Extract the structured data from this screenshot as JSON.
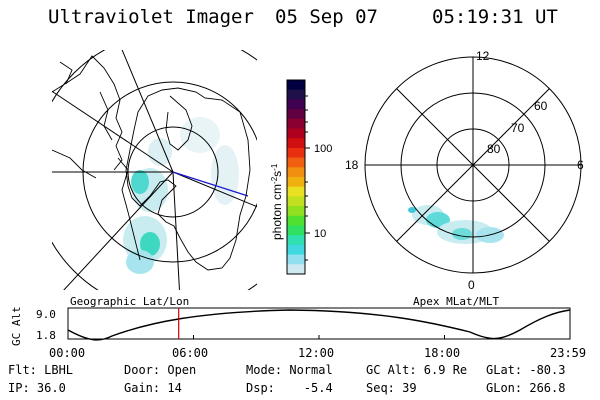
{
  "header": {
    "instrument": "Ultraviolet Imager",
    "date": "05 Sep 07",
    "time": "05:19:31 UT"
  },
  "left_panel": {
    "label": "Geographic Lat/Lon"
  },
  "right_panel": {
    "label": "Apex MLat/MLT",
    "mlt_labels": {
      "top": "12",
      "left": "18",
      "right": "6",
      "bottom": "0"
    },
    "lat_labels": [
      "60",
      "70",
      "80"
    ]
  },
  "colorbar": {
    "title": "photon cm-2s-1",
    "ticks": [
      "100",
      "10"
    ],
    "colors": [
      "#000040",
      "#20104a",
      "#400050",
      "#600040",
      "#8a0030",
      "#b00020",
      "#d01010",
      "#e83010",
      "#f06010",
      "#f09010",
      "#f0b010",
      "#e8e020",
      "#c0e020",
      "#90e020",
      "#50e030",
      "#30e060",
      "#30e0b0",
      "#40d8e0",
      "#90e0f0",
      "#d0e8f0"
    ]
  },
  "altitude_strip": {
    "ylabel": "GC Alt",
    "yticks": [
      "9.0",
      "1.8"
    ],
    "xticks": [
      "00:00",
      "06:00",
      "12:00",
      "18:00",
      "23:59"
    ],
    "marker_fraction": 0.2205
  },
  "footer": {
    "flt": "Flt: LBHL",
    "ip": "IP: 36.0",
    "door": "Door: Open",
    "gain": "Gain: 14",
    "mode": "Mode: Normal",
    "dsp": "Dsp:    -5.4",
    "gcalt": "GC Alt: 6.9 Re",
    "seq": "Seq: 39",
    "glat": "GLat: -80.3",
    "glon": "GLon: 266.8"
  }
}
